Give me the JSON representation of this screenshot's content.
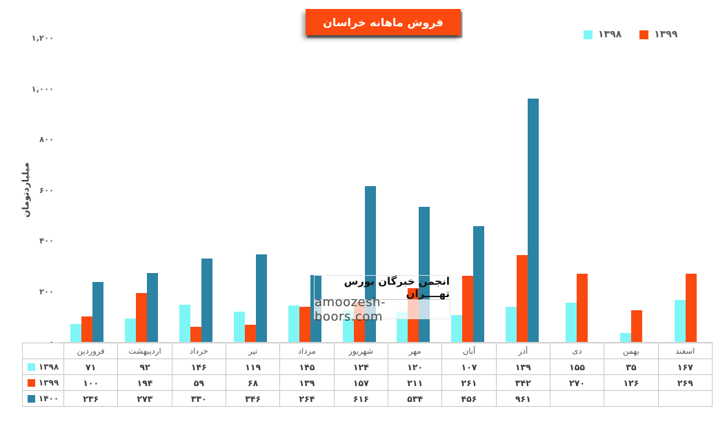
{
  "page": {
    "background": "#ffffff"
  },
  "title": {
    "text": "فروش ماهانه خراسان",
    "bg_color": "#fb4a0f",
    "text_color": "#ffffff"
  },
  "legend": {
    "items": [
      {
        "label": "۱۳۹۸",
        "color": "#7ef6f6"
      },
      {
        "label": "۱۳۹۹",
        "color": "#fb4a0f"
      }
    ]
  },
  "watermark": {
    "line1": "انجمن خبرگان بورس تهــــران",
    "line2": "amoozesh-boors.com"
  },
  "chart_data": {
    "type": "bar",
    "title": "فروش ماهانه خراسان",
    "xlabel": "",
    "ylabel": "میلیاردتومان",
    "ylim": [
      0,
      1200
    ],
    "yticks": [
      0,
      200,
      400,
      600,
      800,
      1000,
      1200
    ],
    "grid": false,
    "legend_position": "top-right",
    "data_table_shown": true,
    "categories": [
      "فروردین",
      "اردیبهشت",
      "خرداد",
      "تیر",
      "مرداد",
      "شهریور",
      "مهر",
      "آبان",
      "آذر",
      "دی",
      "بهمن",
      "اسفند"
    ],
    "series": [
      {
        "name": "۱۳۹۸",
        "color": "#7ef6f6",
        "values": [
          71,
          92,
          146,
          119,
          145,
          124,
          120,
          107,
          139,
          155,
          35,
          167
        ]
      },
      {
        "name": "۱۳۹۹",
        "color": "#fb4a0f",
        "values": [
          100,
          194,
          59,
          68,
          139,
          157,
          211,
          261,
          342,
          270,
          126,
          269
        ]
      },
      {
        "name": "۱۴۰۰",
        "color": "#2b84a4",
        "values": [
          236,
          273,
          330,
          346,
          264,
          616,
          534,
          456,
          961,
          null,
          null,
          null
        ]
      }
    ]
  }
}
